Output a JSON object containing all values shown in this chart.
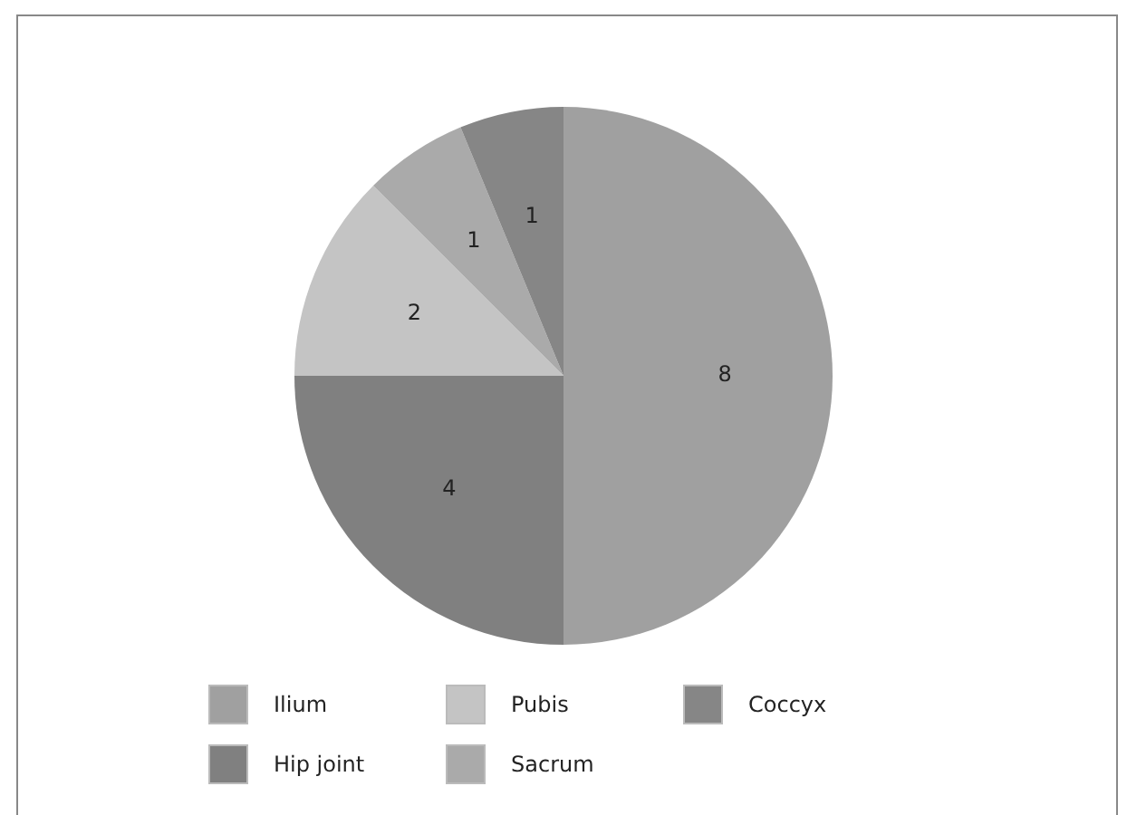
{
  "chart_data": {
    "type": "pie",
    "categories": [
      "Ilium",
      "Hip joint",
      "Pubis",
      "Sacrum",
      "Coccyx"
    ],
    "values": [
      8,
      4,
      2,
      1,
      1
    ],
    "colors": [
      "#a0a0a0",
      "#808080",
      "#c4c4c4",
      "#aaaaaa",
      "#868686"
    ],
    "data_labels": true,
    "legend": "bottom"
  }
}
